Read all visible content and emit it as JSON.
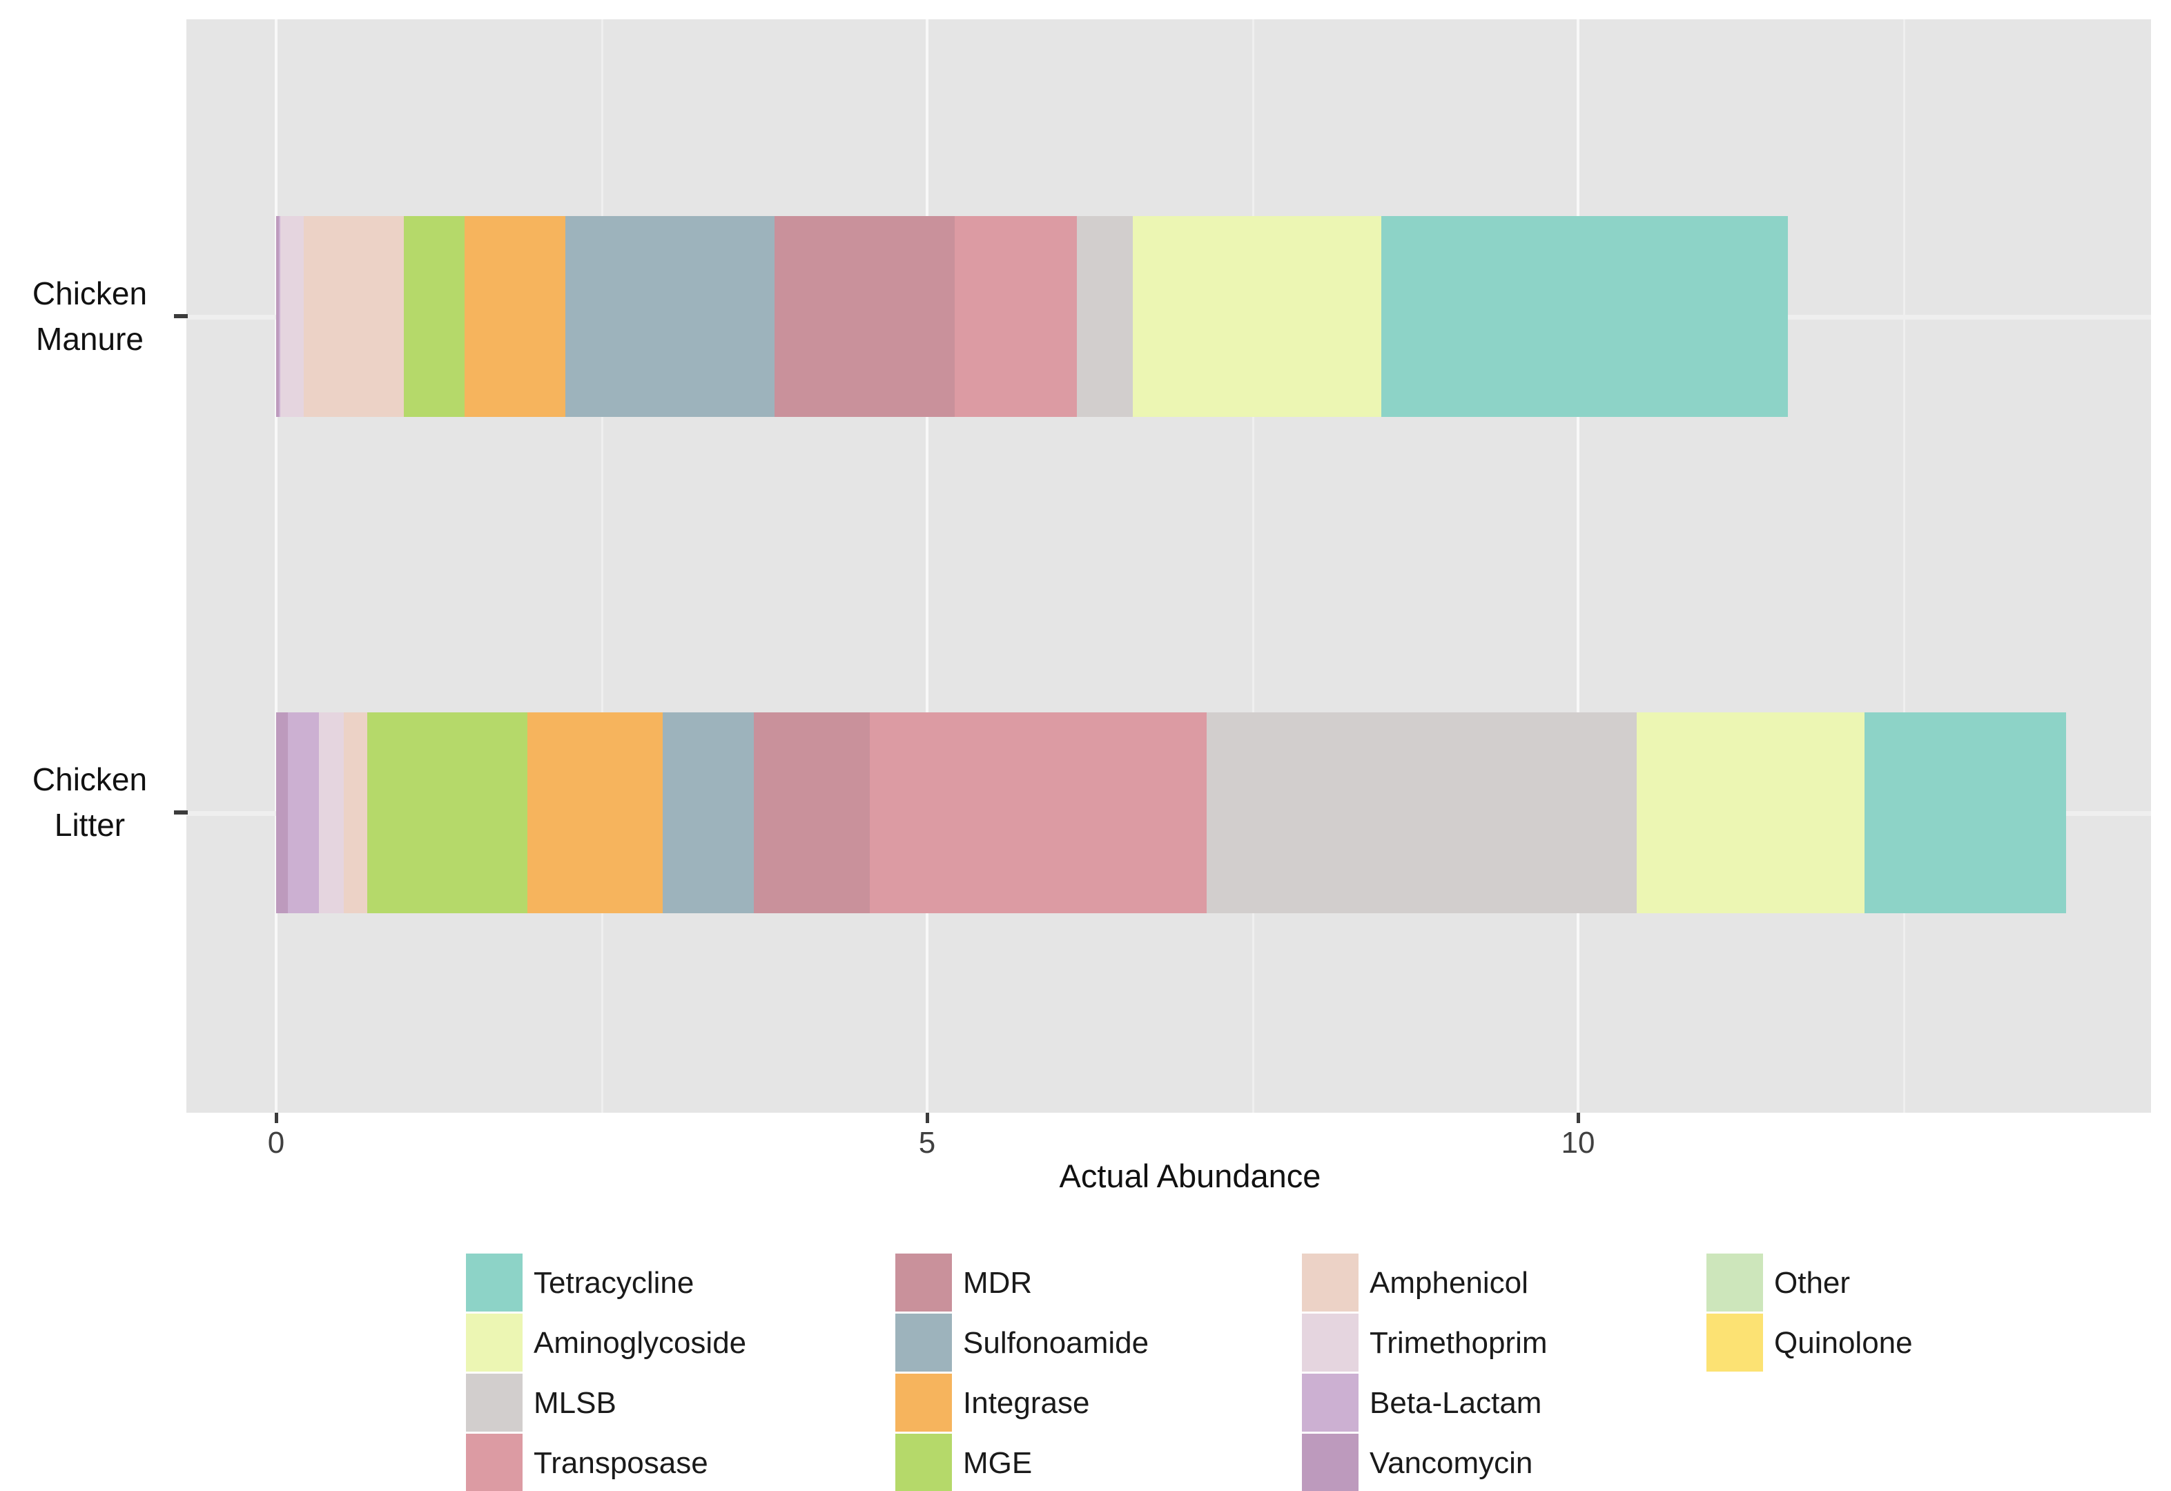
{
  "chart_data": {
    "type": "bar",
    "orientation": "horizontal",
    "stacked": true,
    "title": "",
    "xlabel": "Actual Abundance",
    "ylabel": "",
    "categories": [
      "Chicken Manure",
      "Chicken Litter"
    ],
    "xlim": [
      0,
      14.4
    ],
    "x_ticks": [
      0,
      5,
      10
    ],
    "grid": {
      "major": [
        0,
        5,
        10
      ],
      "minor": [
        2.5,
        7.5,
        12.5
      ]
    },
    "series": [
      {
        "name": "Vancomycin",
        "values": [
          0.02,
          0.09
        ]
      },
      {
        "name": "Beta-Lactam",
        "values": [
          0.01,
          0.24
        ]
      },
      {
        "name": "Trimethoprim",
        "values": [
          0.18,
          0.19
        ]
      },
      {
        "name": "Amphenicol",
        "values": [
          0.77,
          0.18
        ]
      },
      {
        "name": "MGE",
        "values": [
          0.47,
          1.23
        ]
      },
      {
        "name": "Integrase",
        "values": [
          0.77,
          1.04
        ]
      },
      {
        "name": "Sulfonoamide",
        "values": [
          1.61,
          0.7
        ]
      },
      {
        "name": "MDR",
        "values": [
          1.38,
          0.89
        ]
      },
      {
        "name": "Transposase",
        "values": [
          0.94,
          2.59
        ]
      },
      {
        "name": "MLSB",
        "values": [
          0.43,
          3.3
        ]
      },
      {
        "name": "Aminoglycoside",
        "values": [
          1.91,
          1.75
        ]
      },
      {
        "name": "Tetracycline",
        "values": [
          3.12,
          1.55
        ]
      },
      {
        "name": "Other",
        "values": [
          0,
          0
        ]
      },
      {
        "name": "Quinolone",
        "values": [
          0,
          0
        ]
      }
    ],
    "totals": [
      11.61,
      13.74
    ],
    "colors": {
      "Tetracycline": "#8dd3c7",
      "Aminoglycoside": "#ecf6b3",
      "MLSB": "#d2cecd",
      "Transposase": "#dc9ba3",
      "MDR": "#c9919b",
      "Sulfonoamide": "#9db3bc",
      "Integrase": "#f6b45d",
      "MGE": "#b5d96a",
      "Amphenicol": "#ecd2c6",
      "Trimethoprim": "#e5d5df",
      "Beta-Lactam": "#ccb0d2",
      "Vancomycin": "#bd9abd",
      "Other": "#cde6bb",
      "Quinolone": "#fce273"
    },
    "legend_position": "bottom",
    "legend_columns": [
      [
        "Tetracycline",
        "Aminoglycoside",
        "MLSB",
        "Transposase"
      ],
      [
        "MDR",
        "Sulfonoamide",
        "Integrase",
        "MGE"
      ],
      [
        "Amphenicol",
        "Trimethoprim",
        "Beta-Lactam",
        "Vancomycin"
      ],
      [
        "Other",
        "Quinolone"
      ]
    ]
  },
  "x_axis": {
    "title": "Actual Abundance",
    "tick_labels": [
      "0",
      "5",
      "10"
    ]
  },
  "y_axis": {
    "labels": [
      {
        "line1": "Chicken",
        "line2": "Manure"
      },
      {
        "line1": "Chicken",
        "line2": "Litter"
      }
    ]
  },
  "style_colors": {
    "panel_background": "#e5e5e5",
    "grid_major": "#f8f8f8",
    "grid_minor": "#efefef",
    "tick": "#3c3c3c",
    "tick_label": "#404040",
    "text": "#1a1a1a"
  }
}
